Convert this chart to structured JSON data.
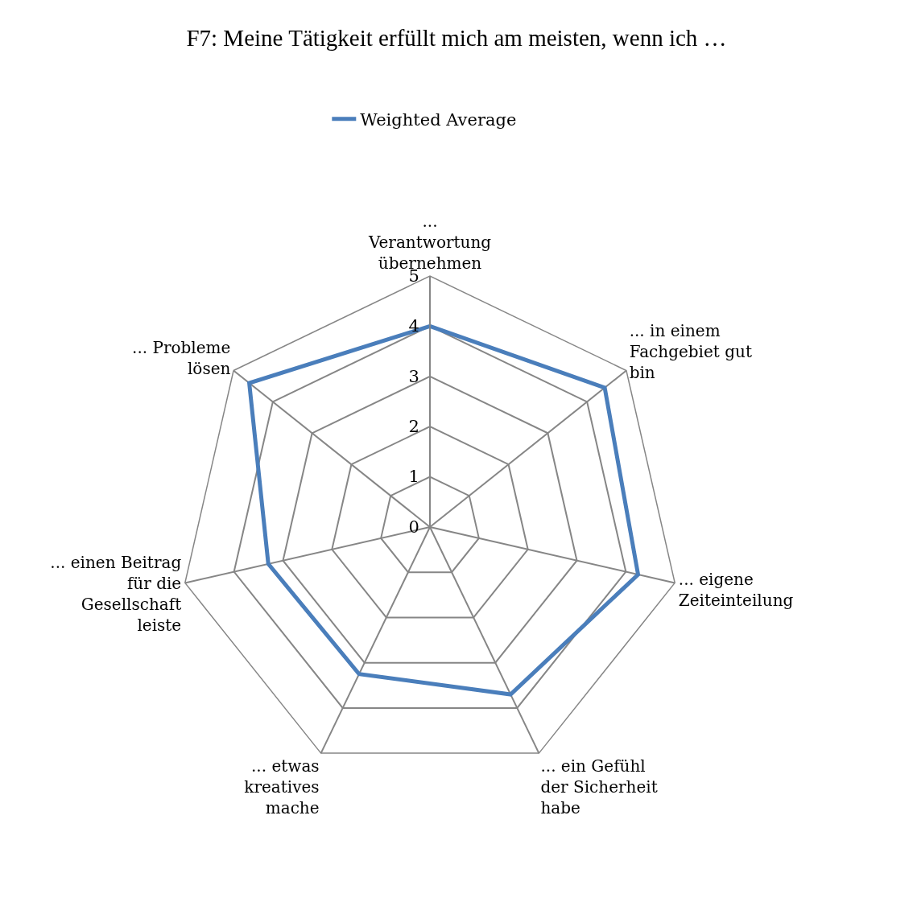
{
  "chart_data": {
    "type": "radar",
    "title": "F7: Meine Tätigkeit erfüllt mich am meisten, wenn ich …",
    "categories": [
      "...\nVerantwortung\nübernehmen",
      "... in einem\nFachgebiet gut\nbin",
      "... eigene\nZeiteinteilung",
      "... ein Gefühl\nder Sicherheit\nhabe",
      "... etwas\nkreatives\nmache",
      "... einen Beitrag\nfür die\nGesellschaft\nleiste",
      "... Probleme\nlösen"
    ],
    "series": [
      {
        "name": "Weighted Average",
        "color": "#4a7ebb",
        "values": [
          4.0,
          4.45,
          4.25,
          3.7,
          3.25,
          3.3,
          4.6
        ]
      }
    ],
    "ylim": [
      0,
      5
    ],
    "yticks": [
      0,
      1,
      2,
      3,
      4,
      5
    ],
    "grid": true,
    "legend": "top",
    "marker": "none",
    "line_style": "solid"
  }
}
